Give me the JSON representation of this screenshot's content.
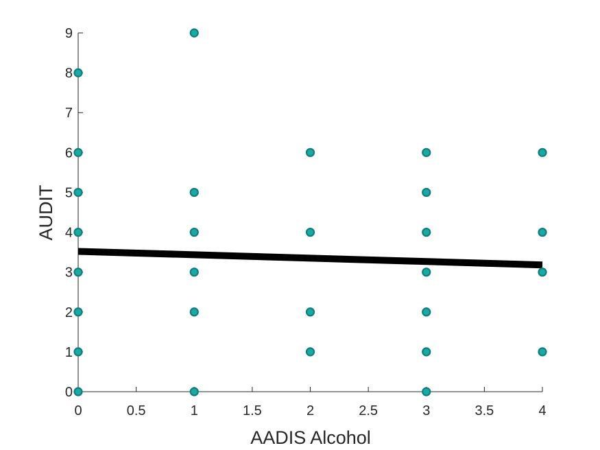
{
  "chart_data": {
    "type": "scatter",
    "xlabel": "AADIS Alcohol",
    "ylabel": "AUDIT",
    "xlim": [
      0,
      4
    ],
    "ylim": [
      0,
      9
    ],
    "x_ticks": [
      "0",
      "0.5",
      "1",
      "1.5",
      "2",
      "2.5",
      "3",
      "3.5",
      "4"
    ],
    "y_ticks": [
      "0",
      "1",
      "2",
      "3",
      "4",
      "5",
      "6",
      "7",
      "8",
      "9"
    ],
    "grid": false,
    "points": [
      {
        "x": 0,
        "y": 0
      },
      {
        "x": 0,
        "y": 1
      },
      {
        "x": 0,
        "y": 2
      },
      {
        "x": 0,
        "y": 3
      },
      {
        "x": 0,
        "y": 4
      },
      {
        "x": 0,
        "y": 5
      },
      {
        "x": 0,
        "y": 6
      },
      {
        "x": 0,
        "y": 8
      },
      {
        "x": 1,
        "y": 0
      },
      {
        "x": 1,
        "y": 2
      },
      {
        "x": 1,
        "y": 3
      },
      {
        "x": 1,
        "y": 4
      },
      {
        "x": 1,
        "y": 5
      },
      {
        "x": 1,
        "y": 9
      },
      {
        "x": 2,
        "y": 1
      },
      {
        "x": 2,
        "y": 2
      },
      {
        "x": 2,
        "y": 4
      },
      {
        "x": 2,
        "y": 6
      },
      {
        "x": 3,
        "y": 0
      },
      {
        "x": 3,
        "y": 1
      },
      {
        "x": 3,
        "y": 2
      },
      {
        "x": 3,
        "y": 3
      },
      {
        "x": 3,
        "y": 4
      },
      {
        "x": 3,
        "y": 5
      },
      {
        "x": 3,
        "y": 6
      },
      {
        "x": 4,
        "y": 1
      },
      {
        "x": 4,
        "y": 3
      },
      {
        "x": 4,
        "y": 4
      },
      {
        "x": 4,
        "y": 6
      }
    ],
    "fit_line": {
      "x": [
        0,
        4
      ],
      "y": [
        3.52,
        3.18
      ]
    },
    "colors": {
      "marker_fill": "#19aaa5",
      "marker_edge": "#0e7f7b",
      "fit_line": "#000000",
      "axis": "#262626"
    }
  }
}
